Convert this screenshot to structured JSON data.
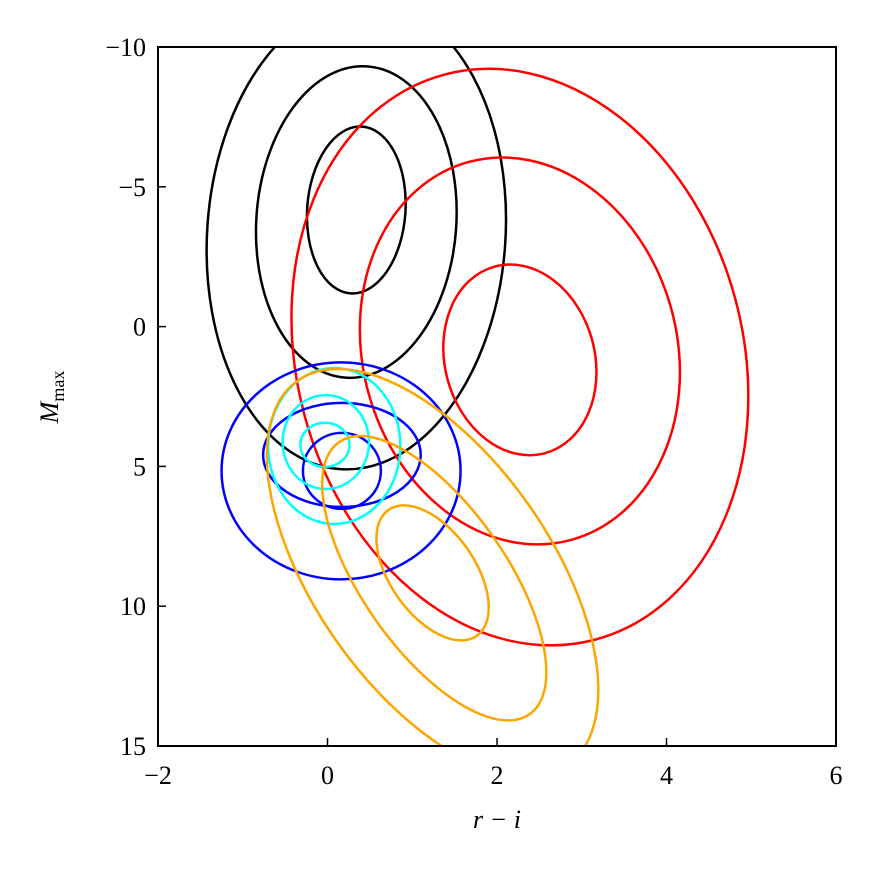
{
  "chart_data": {
    "type": "ellipse",
    "xlabel": "r − i",
    "ylabel": "M",
    "ylabel_sub": "max",
    "xlim": [
      -2,
      6
    ],
    "ylim": [
      15,
      -10
    ],
    "xticks": [
      {
        "value": -2,
        "label": "−2"
      },
      0,
      2,
      4,
      6
    ],
    "yticks": [
      {
        "value": -10,
        "label": "−10"
      },
      {
        "value": -5,
        "label": "−5"
      },
      0,
      5,
      10,
      15
    ],
    "series": [
      {
        "color": "#000000",
        "ellipses": [
          {
            "cx": 0.34,
            "cy": -4.17,
            "rx": 0.58,
            "ry": 2.99,
            "angle": 4
          },
          {
            "cx": 0.34,
            "cy": -3.74,
            "rx": 1.18,
            "ry": 5.58,
            "angle": 4
          },
          {
            "cx": 0.34,
            "cy": -3.28,
            "rx": 1.76,
            "ry": 8.4,
            "angle": 4
          }
        ]
      },
      {
        "color": "#ff0000",
        "ellipses": [
          {
            "cx": 2.27,
            "cy": 1.19,
            "rx": 1.14,
            "ry": 2.68,
            "angle": 75
          },
          {
            "cx": 2.27,
            "cy": 0.87,
            "rx": 2.31,
            "ry": 5.62,
            "angle": 75
          },
          {
            "cx": 2.27,
            "cy": 1.09,
            "rx": 3.45,
            "ry": 7.98,
            "angle": 75
          }
        ]
      },
      {
        "color": "#0000ff",
        "ellipses": [
          {
            "cx": 0.17,
            "cy": 5.16,
            "rx": 0.46,
            "ry": 1.36,
            "angle": 0
          },
          {
            "cx": 0.17,
            "cy": 4.59,
            "rx": 0.93,
            "ry": 1.86,
            "angle": 0
          },
          {
            "cx": 0.16,
            "cy": 5.16,
            "rx": 1.41,
            "ry": 3.88,
            "angle": 0
          }
        ]
      },
      {
        "color": "#00ffff",
        "ellipses": [
          {
            "cx": -0.03,
            "cy": 4.23,
            "rx": 0.29,
            "ry": 0.79,
            "angle": 0
          },
          {
            "cx": -0.02,
            "cy": 4.13,
            "rx": 0.51,
            "ry": 1.68,
            "angle": 0
          },
          {
            "cx": 0.08,
            "cy": 4.27,
            "rx": 0.78,
            "ry": 2.79,
            "angle": 0
          }
        ]
      },
      {
        "color": "#ffa500",
        "ellipses": [
          {
            "cx": 1.24,
            "cy": 8.81,
            "rx": 0.5,
            "ry": 2.75,
            "angle": -35
          },
          {
            "cx": 1.26,
            "cy": 9.0,
            "rx": 0.85,
            "ry": 5.94,
            "angle": -35
          },
          {
            "cx": 1.24,
            "cy": 8.81,
            "rx": 1.39,
            "ry": 8.4,
            "angle": -35
          }
        ]
      }
    ]
  }
}
